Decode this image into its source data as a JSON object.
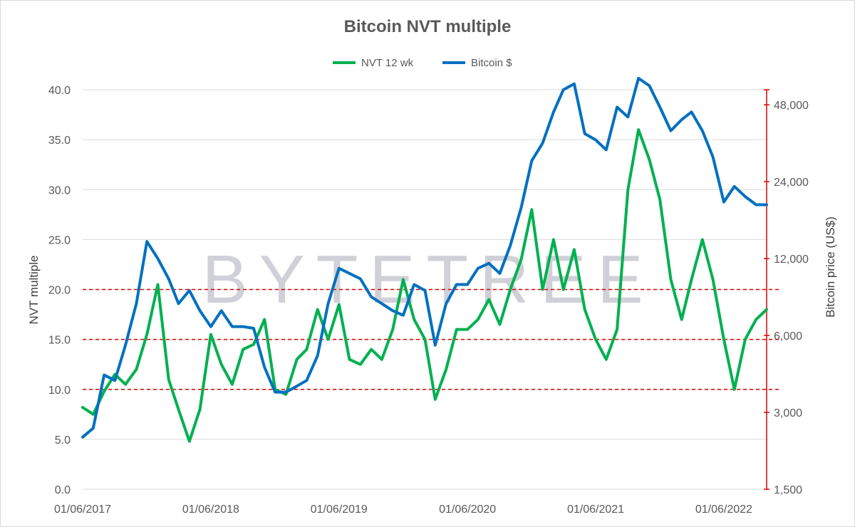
{
  "chart_data": {
    "type": "line",
    "title": "Bitcoin NVT multiple",
    "watermark": "BYTETREE",
    "y_left": {
      "label": "NVT multiple",
      "range": [
        0,
        40
      ],
      "ticks": [
        "0.0",
        "5.0",
        "10.0",
        "15.0",
        "20.0",
        "25.0",
        "30.0",
        "35.0",
        "40.0"
      ]
    },
    "y_right": {
      "label": "Bitcoin price (US$)",
      "scale": "log",
      "range": [
        1500,
        55000
      ],
      "ticks": [
        "1,500",
        "3,000",
        "6,000",
        "12,000",
        "24,000",
        "48,000"
      ],
      "color": "#e00000"
    },
    "x_ticks": [
      "01/06/2017",
      "01/06/2018",
      "01/06/2019",
      "01/06/2020",
      "01/06/2021",
      "01/06/2022"
    ],
    "x_range": [
      "2017-06-01",
      "2022-10-01"
    ],
    "reference_lines": {
      "values": [
        10,
        15,
        20
      ],
      "axis": "left",
      "color": "#e00000",
      "style": "dashed"
    },
    "grid": true,
    "legend_position": "top",
    "series": [
      {
        "name": "NVT 12 wk",
        "axis": "left",
        "color": "#00b050",
        "points": [
          [
            "2017-06-01",
            8.2
          ],
          [
            "2017-07-01",
            7.5
          ],
          [
            "2017-08-01",
            9.8
          ],
          [
            "2017-09-01",
            11.5
          ],
          [
            "2017-10-01",
            10.5
          ],
          [
            "2017-11-01",
            12.0
          ],
          [
            "2017-12-01",
            15.5
          ],
          [
            "2018-01-01",
            20.5
          ],
          [
            "2018-02-01",
            11.0
          ],
          [
            "2018-03-01",
            8.0
          ],
          [
            "2018-04-01",
            4.8
          ],
          [
            "2018-05-01",
            8.0
          ],
          [
            "2018-06-01",
            15.5
          ],
          [
            "2018-07-01",
            12.5
          ],
          [
            "2018-08-01",
            10.5
          ],
          [
            "2018-09-01",
            14.0
          ],
          [
            "2018-10-01",
            14.5
          ],
          [
            "2018-11-01",
            17.0
          ],
          [
            "2018-12-01",
            10.0
          ],
          [
            "2019-01-01",
            9.5
          ],
          [
            "2019-02-01",
            13.0
          ],
          [
            "2019-03-01",
            14.0
          ],
          [
            "2019-04-01",
            18.0
          ],
          [
            "2019-05-01",
            15.0
          ],
          [
            "2019-06-01",
            18.5
          ],
          [
            "2019-07-01",
            13.0
          ],
          [
            "2019-08-01",
            12.5
          ],
          [
            "2019-09-01",
            14.0
          ],
          [
            "2019-10-01",
            13.0
          ],
          [
            "2019-11-01",
            16.0
          ],
          [
            "2019-12-01",
            21.0
          ],
          [
            "2020-01-01",
            17.0
          ],
          [
            "2020-02-01",
            15.0
          ],
          [
            "2020-03-01",
            9.0
          ],
          [
            "2020-04-01",
            12.0
          ],
          [
            "2020-05-01",
            16.0
          ],
          [
            "2020-06-01",
            16.0
          ],
          [
            "2020-07-01",
            17.0
          ],
          [
            "2020-08-01",
            19.0
          ],
          [
            "2020-09-01",
            16.5
          ],
          [
            "2020-10-01",
            20.0
          ],
          [
            "2020-11-01",
            23.0
          ],
          [
            "2020-12-01",
            28.0
          ],
          [
            "2021-01-01",
            20.0
          ],
          [
            "2021-02-01",
            25.0
          ],
          [
            "2021-03-01",
            20.0
          ],
          [
            "2021-04-01",
            24.0
          ],
          [
            "2021-05-01",
            18.0
          ],
          [
            "2021-06-01",
            15.0
          ],
          [
            "2021-07-01",
            13.0
          ],
          [
            "2021-08-01",
            16.0
          ],
          [
            "2021-09-01",
            30.0
          ],
          [
            "2021-10-01",
            36.0
          ],
          [
            "2021-11-01",
            33.0
          ],
          [
            "2021-12-01",
            29.0
          ],
          [
            "2022-01-01",
            21.0
          ],
          [
            "2022-02-01",
            17.0
          ],
          [
            "2022-03-01",
            21.0
          ],
          [
            "2022-04-01",
            25.0
          ],
          [
            "2022-05-01",
            21.0
          ],
          [
            "2022-06-01",
            15.0
          ],
          [
            "2022-07-01",
            10.0
          ],
          [
            "2022-08-01",
            15.0
          ],
          [
            "2022-09-01",
            17.0
          ],
          [
            "2022-10-01",
            18.0
          ]
        ]
      },
      {
        "name": "Bitcoin $",
        "axis": "right",
        "color": "#0070c0",
        "points": [
          [
            "2017-06-01",
            2400
          ],
          [
            "2017-07-01",
            2600
          ],
          [
            "2017-08-01",
            4200
          ],
          [
            "2017-09-01",
            4000
          ],
          [
            "2017-10-01",
            5500
          ],
          [
            "2017-11-01",
            8000
          ],
          [
            "2017-12-01",
            14000
          ],
          [
            "2018-01-01",
            12000
          ],
          [
            "2018-02-01",
            10000
          ],
          [
            "2018-03-01",
            8000
          ],
          [
            "2018-04-01",
            9000
          ],
          [
            "2018-05-01",
            7500
          ],
          [
            "2018-06-01",
            6500
          ],
          [
            "2018-07-01",
            7500
          ],
          [
            "2018-08-01",
            6500
          ],
          [
            "2018-09-01",
            6500
          ],
          [
            "2018-10-01",
            6400
          ],
          [
            "2018-11-01",
            4500
          ],
          [
            "2018-12-01",
            3600
          ],
          [
            "2019-01-01",
            3600
          ],
          [
            "2019-02-01",
            3800
          ],
          [
            "2019-03-01",
            4000
          ],
          [
            "2019-04-01",
            5000
          ],
          [
            "2019-05-01",
            8000
          ],
          [
            "2019-06-01",
            11000
          ],
          [
            "2019-07-01",
            10500
          ],
          [
            "2019-08-01",
            10000
          ],
          [
            "2019-09-01",
            8500
          ],
          [
            "2019-10-01",
            8000
          ],
          [
            "2019-11-01",
            7500
          ],
          [
            "2019-12-01",
            7200
          ],
          [
            "2020-01-01",
            9500
          ],
          [
            "2020-02-01",
            9000
          ],
          [
            "2020-03-01",
            5500
          ],
          [
            "2020-04-01",
            8000
          ],
          [
            "2020-05-01",
            9500
          ],
          [
            "2020-06-01",
            9500
          ],
          [
            "2020-07-01",
            11000
          ],
          [
            "2020-08-01",
            11500
          ],
          [
            "2020-09-01",
            10500
          ],
          [
            "2020-10-01",
            13500
          ],
          [
            "2020-11-01",
            19000
          ],
          [
            "2020-12-01",
            29000
          ],
          [
            "2021-01-01",
            34000
          ],
          [
            "2021-02-01",
            45000
          ],
          [
            "2021-03-01",
            55000
          ],
          [
            "2021-04-01",
            58000
          ],
          [
            "2021-05-01",
            37000
          ],
          [
            "2021-06-01",
            35000
          ],
          [
            "2021-07-01",
            32000
          ],
          [
            "2021-08-01",
            47000
          ],
          [
            "2021-09-01",
            43000
          ],
          [
            "2021-10-01",
            61000
          ],
          [
            "2021-11-01",
            57000
          ],
          [
            "2021-12-01",
            47000
          ],
          [
            "2022-01-01",
            38000
          ],
          [
            "2022-02-01",
            42000
          ],
          [
            "2022-03-01",
            45000
          ],
          [
            "2022-04-01",
            38000
          ],
          [
            "2022-05-01",
            30000
          ],
          [
            "2022-06-01",
            20000
          ],
          [
            "2022-07-01",
            23000
          ],
          [
            "2022-08-01",
            21000
          ],
          [
            "2022-09-01",
            19500
          ],
          [
            "2022-10-01",
            19500
          ]
        ]
      }
    ]
  }
}
